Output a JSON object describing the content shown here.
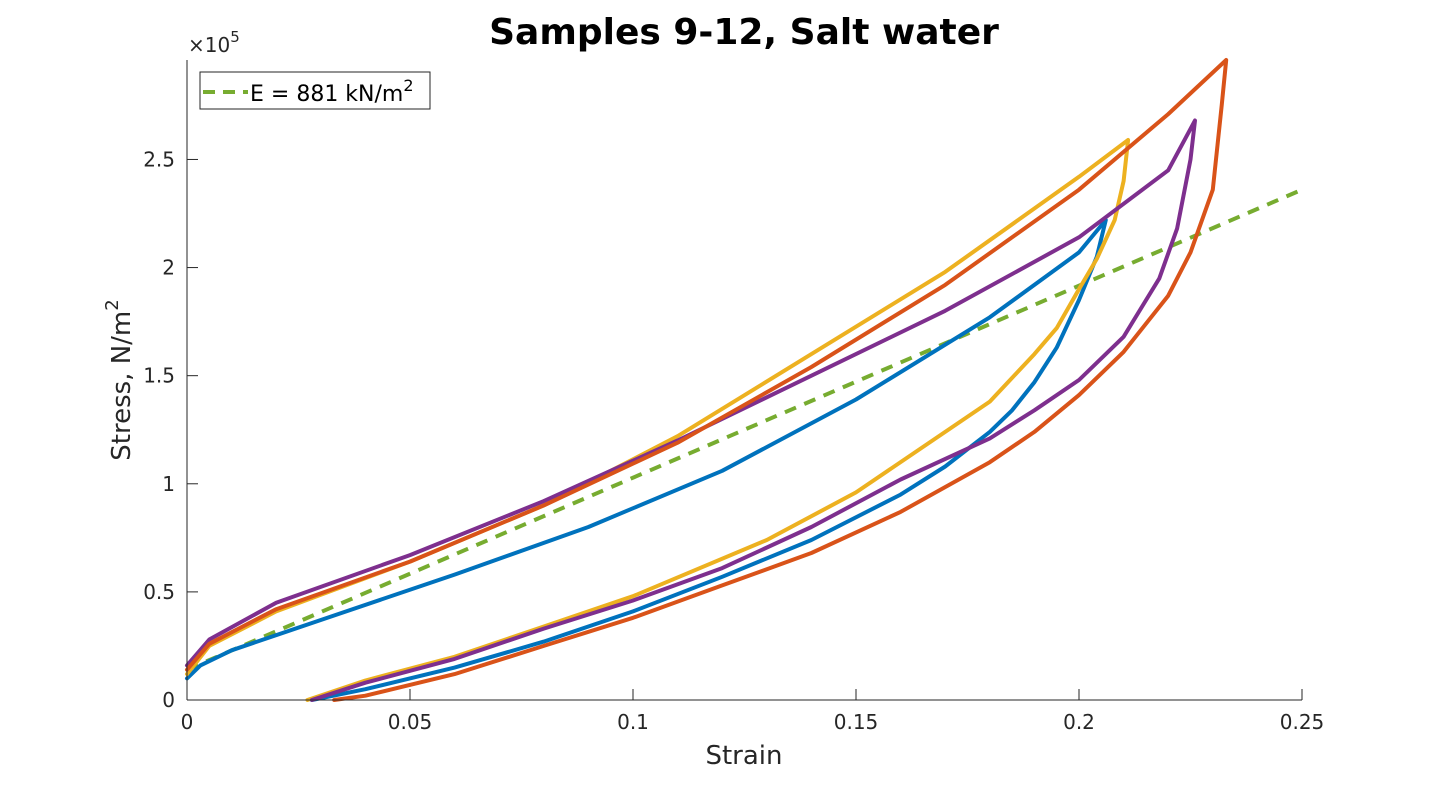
{
  "chart_data": {
    "type": "line",
    "title": "Samples 9-12, Salt water",
    "xlabel": "Strain",
    "ylabel": "Stress, N/m",
    "ylabel_superscript": "2",
    "y_exponent_base": "×10",
    "y_exponent_power": "5",
    "y_scale": 100000,
    "xlim": [
      0,
      0.25
    ],
    "ylim": [
      0,
      296000
    ],
    "x_ticks": [
      0,
      0.05,
      0.1,
      0.15,
      0.2,
      0.25
    ],
    "x_tick_labels": [
      "0",
      "0.05",
      "0.1",
      "0.15",
      "0.2",
      "0.25"
    ],
    "y_ticks": [
      0,
      50000,
      100000,
      150000,
      200000,
      250000
    ],
    "y_tick_labels": [
      "0",
      "0.5",
      "1",
      "1.5",
      "2",
      "2.5"
    ],
    "grid": false,
    "legend_position": "top-left",
    "series": [
      {
        "color": "#0072BD",
        "x": [
          0,
          0.003,
          0.01,
          0.03,
          0.06,
          0.09,
          0.12,
          0.15,
          0.18,
          0.2,
          0.206,
          0.204,
          0.2,
          0.195,
          0.19,
          0.185,
          0.18,
          0.17,
          0.16,
          0.14,
          0.12,
          0.1,
          0.08,
          0.06,
          0.04,
          0.028
        ],
        "y": [
          10000,
          16000,
          23000,
          37000,
          58000,
          80000,
          106000,
          139000,
          177000,
          207000,
          222000,
          205000,
          185000,
          163000,
          147000,
          134000,
          124000,
          108000,
          95000,
          74000,
          57000,
          41000,
          27000,
          15000,
          5000,
          0
        ]
      },
      {
        "color": "#D95319",
        "x": [
          0,
          0.005,
          0.02,
          0.05,
          0.08,
          0.11,
          0.14,
          0.17,
          0.2,
          0.22,
          0.233,
          0.232,
          0.23,
          0.225,
          0.22,
          0.21,
          0.2,
          0.19,
          0.18,
          0.16,
          0.14,
          0.12,
          0.1,
          0.08,
          0.06,
          0.04,
          0.033
        ],
        "y": [
          14000,
          26000,
          42000,
          64000,
          90000,
          119000,
          154000,
          192000,
          236000,
          271000,
          296000,
          275000,
          236000,
          207000,
          187000,
          161000,
          141000,
          124000,
          110000,
          87000,
          68000,
          53000,
          38000,
          25000,
          12000,
          2000,
          0
        ]
      },
      {
        "color": "#EDB120",
        "x": [
          0,
          0.005,
          0.02,
          0.05,
          0.08,
          0.11,
          0.14,
          0.17,
          0.2,
          0.211,
          0.21,
          0.208,
          0.204,
          0.2,
          0.195,
          0.19,
          0.18,
          0.17,
          0.15,
          0.13,
          0.1,
          0.08,
          0.06,
          0.04,
          0.027
        ],
        "y": [
          12000,
          25000,
          41000,
          64000,
          90000,
          122000,
          160000,
          198000,
          242000,
          259000,
          240000,
          222000,
          204000,
          190000,
          172000,
          160000,
          138000,
          124000,
          96000,
          74000,
          48000,
          34000,
          20000,
          9000,
          0
        ]
      },
      {
        "color": "#7E2F8E",
        "x": [
          0,
          0.005,
          0.02,
          0.05,
          0.08,
          0.11,
          0.14,
          0.17,
          0.2,
          0.22,
          0.226,
          0.225,
          0.222,
          0.218,
          0.21,
          0.2,
          0.19,
          0.18,
          0.16,
          0.14,
          0.12,
          0.1,
          0.08,
          0.06,
          0.04,
          0.028
        ],
        "y": [
          16000,
          28000,
          45000,
          67000,
          92000,
          120000,
          150000,
          180000,
          214000,
          245000,
          268000,
          250000,
          218000,
          195000,
          168000,
          148000,
          134000,
          121000,
          102000,
          80000,
          61000,
          46000,
          33000,
          19000,
          8000,
          0
        ]
      },
      {
        "name": "E = 881 kN/m",
        "name_superscript": "2",
        "color": "#77AC30",
        "dashed": true,
        "x": [
          0,
          0.25
        ],
        "y": [
          14000,
          236000
        ]
      }
    ]
  }
}
